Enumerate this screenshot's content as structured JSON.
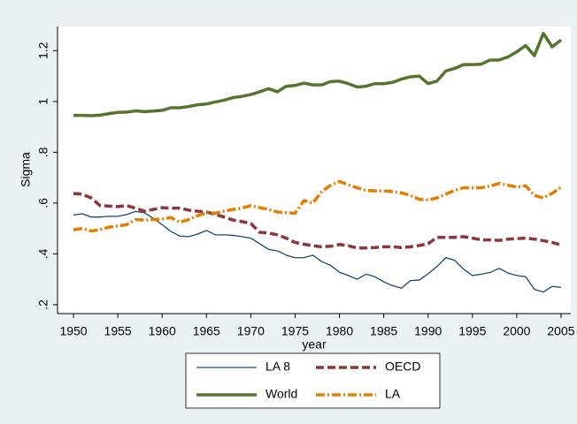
{
  "chart_data": {
    "type": "line",
    "x_label": "year",
    "y_label": "Sigma",
    "x": [
      1950,
      1951,
      1952,
      1953,
      1954,
      1955,
      1956,
      1957,
      1958,
      1959,
      1960,
      1961,
      1962,
      1963,
      1964,
      1965,
      1966,
      1967,
      1968,
      1969,
      1970,
      1971,
      1972,
      1973,
      1974,
      1975,
      1976,
      1977,
      1978,
      1979,
      1980,
      1981,
      1982,
      1983,
      1984,
      1985,
      1986,
      1987,
      1988,
      1989,
      1990,
      1991,
      1992,
      1993,
      1994,
      1995,
      1996,
      1997,
      1998,
      1999,
      2000,
      2001,
      2002,
      2003,
      2004,
      2005
    ],
    "xlim": [
      1948.2,
      2006.1
    ],
    "xticks": [
      1950,
      1955,
      1960,
      1965,
      1970,
      1975,
      1980,
      1985,
      1990,
      1995,
      2000,
      2005
    ],
    "ylim": [
      0.165,
      1.295
    ],
    "yticks": [
      {
        "value": 0.2,
        "label": ".2"
      },
      {
        "value": 0.4,
        "label": ".4"
      },
      {
        "value": 0.6,
        "label": ".6"
      },
      {
        "value": 0.8,
        "label": ".8"
      },
      1,
      1.2
    ],
    "series": [
      {
        "name": "LA 8",
        "color": "#1a476f",
        "line_style": "thin",
        "values": [
          0.553,
          0.558,
          0.545,
          0.545,
          0.548,
          0.548,
          0.555,
          0.567,
          0.562,
          0.54,
          0.515,
          0.488,
          0.47,
          0.468,
          0.478,
          0.492,
          0.475,
          0.475,
          0.473,
          0.468,
          0.462,
          0.44,
          0.418,
          0.412,
          0.395,
          0.385,
          0.385,
          0.395,
          0.37,
          0.355,
          0.328,
          0.315,
          0.3,
          0.32,
          0.31,
          0.29,
          0.275,
          0.265,
          0.295,
          0.297,
          0.322,
          0.35,
          0.385,
          0.375,
          0.34,
          0.315,
          0.32,
          0.327,
          0.343,
          0.325,
          0.315,
          0.31,
          0.26,
          0.25,
          0.272,
          0.268
        ]
      },
      {
        "name": "OECD",
        "color": "#90353b",
        "line_style": "dash",
        "values": [
          0.638,
          0.635,
          0.62,
          0.59,
          0.588,
          0.586,
          0.59,
          0.58,
          0.568,
          0.575,
          0.582,
          0.58,
          0.58,
          0.572,
          0.568,
          0.565,
          0.555,
          0.545,
          0.533,
          0.527,
          0.52,
          0.485,
          0.482,
          0.475,
          0.462,
          0.445,
          0.438,
          0.432,
          0.428,
          0.43,
          0.437,
          0.432,
          0.423,
          0.423,
          0.425,
          0.428,
          0.428,
          0.425,
          0.428,
          0.433,
          0.44,
          0.465,
          0.465,
          0.465,
          0.468,
          0.462,
          0.455,
          0.455,
          0.453,
          0.458,
          0.46,
          0.462,
          0.458,
          0.452,
          0.445,
          0.435
        ]
      },
      {
        "name": "World",
        "color": "#55752f",
        "line_style": "thick",
        "values": [
          0.945,
          0.945,
          0.944,
          0.946,
          0.952,
          0.957,
          0.958,
          0.963,
          0.96,
          0.962,
          0.965,
          0.975,
          0.975,
          0.98,
          0.987,
          0.99,
          0.998,
          1.005,
          1.015,
          1.02,
          1.027,
          1.038,
          1.05,
          1.038,
          1.06,
          1.063,
          1.072,
          1.065,
          1.065,
          1.078,
          1.08,
          1.07,
          1.057,
          1.06,
          1.07,
          1.07,
          1.075,
          1.088,
          1.097,
          1.1,
          1.07,
          1.08,
          1.12,
          1.13,
          1.145,
          1.145,
          1.147,
          1.163,
          1.163,
          1.175,
          1.195,
          1.22,
          1.18,
          1.268,
          1.215,
          1.242
        ]
      },
      {
        "name": "LA",
        "color": "#e37e00",
        "line_style": "dashdot",
        "values": [
          0.495,
          0.5,
          0.49,
          0.495,
          0.505,
          0.51,
          0.515,
          0.535,
          0.533,
          0.535,
          0.537,
          0.543,
          0.525,
          0.535,
          0.55,
          0.562,
          0.56,
          0.568,
          0.575,
          0.58,
          0.59,
          0.582,
          0.575,
          0.565,
          0.562,
          0.56,
          0.61,
          0.6,
          0.645,
          0.67,
          0.685,
          0.672,
          0.66,
          0.65,
          0.648,
          0.648,
          0.645,
          0.64,
          0.63,
          0.615,
          0.612,
          0.62,
          0.635,
          0.65,
          0.66,
          0.66,
          0.66,
          0.667,
          0.677,
          0.67,
          0.663,
          0.668,
          0.63,
          0.62,
          0.638,
          0.663
        ]
      }
    ],
    "legend_position": "bottom"
  }
}
